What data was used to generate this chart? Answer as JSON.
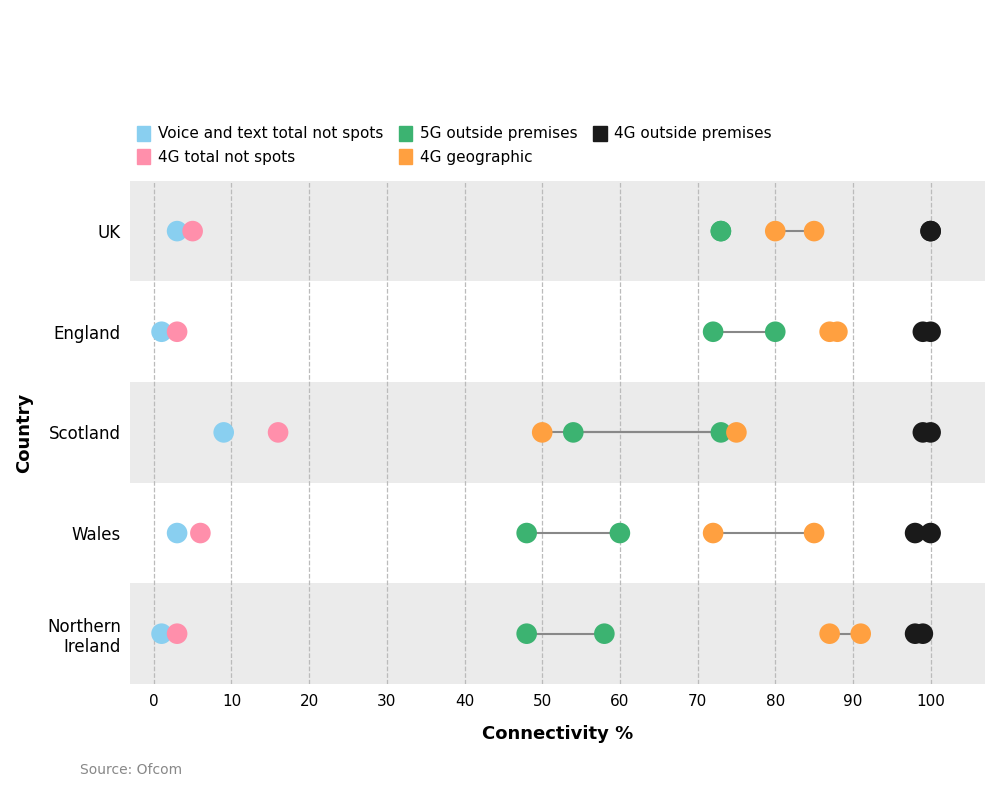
{
  "countries": [
    "UK",
    "England",
    "Scotland",
    "Wales",
    "Northern\nIreland"
  ],
  "series": {
    "voice_text": {
      "color": "#89CFF0",
      "label": "Voice and text total not spots",
      "values": [
        3,
        1,
        9,
        3,
        1
      ]
    },
    "4g_total": {
      "color": "#FF8FAB",
      "label": "4G total not spots",
      "values": [
        5,
        3,
        16,
        6,
        3
      ]
    },
    "5g_outside": {
      "color": "#3CB371",
      "label": "5G outside premises",
      "values_low": [
        73,
        72,
        54,
        48,
        48
      ],
      "values_high": [
        73,
        80,
        73,
        60,
        58
      ]
    },
    "4g_geo": {
      "color": "#FFA040",
      "label": "4G geographic",
      "values_low": [
        80,
        87,
        50,
        72,
        87
      ],
      "values_high": [
        85,
        88,
        75,
        85,
        91
      ]
    },
    "4g_outside": {
      "color": "#1a1a1a",
      "label": "4G outside premises",
      "values_low": [
        100,
        99,
        99,
        98,
        98
      ],
      "values_high": [
        100,
        100,
        100,
        100,
        99
      ]
    }
  },
  "xlabel": "Connectivity %",
  "ylabel": "Country",
  "xlim": [
    -3,
    107
  ],
  "xticks": [
    0,
    10,
    20,
    30,
    40,
    50,
    60,
    70,
    80,
    90,
    100
  ],
  "source_text": "Source: Ofcom",
  "bg_colors": [
    "#EBEBEB",
    "#FFFFFF",
    "#EBEBEB",
    "#FFFFFF",
    "#EBEBEB"
  ],
  "grid_color": "#BBBBBB",
  "line_color": "#888888"
}
